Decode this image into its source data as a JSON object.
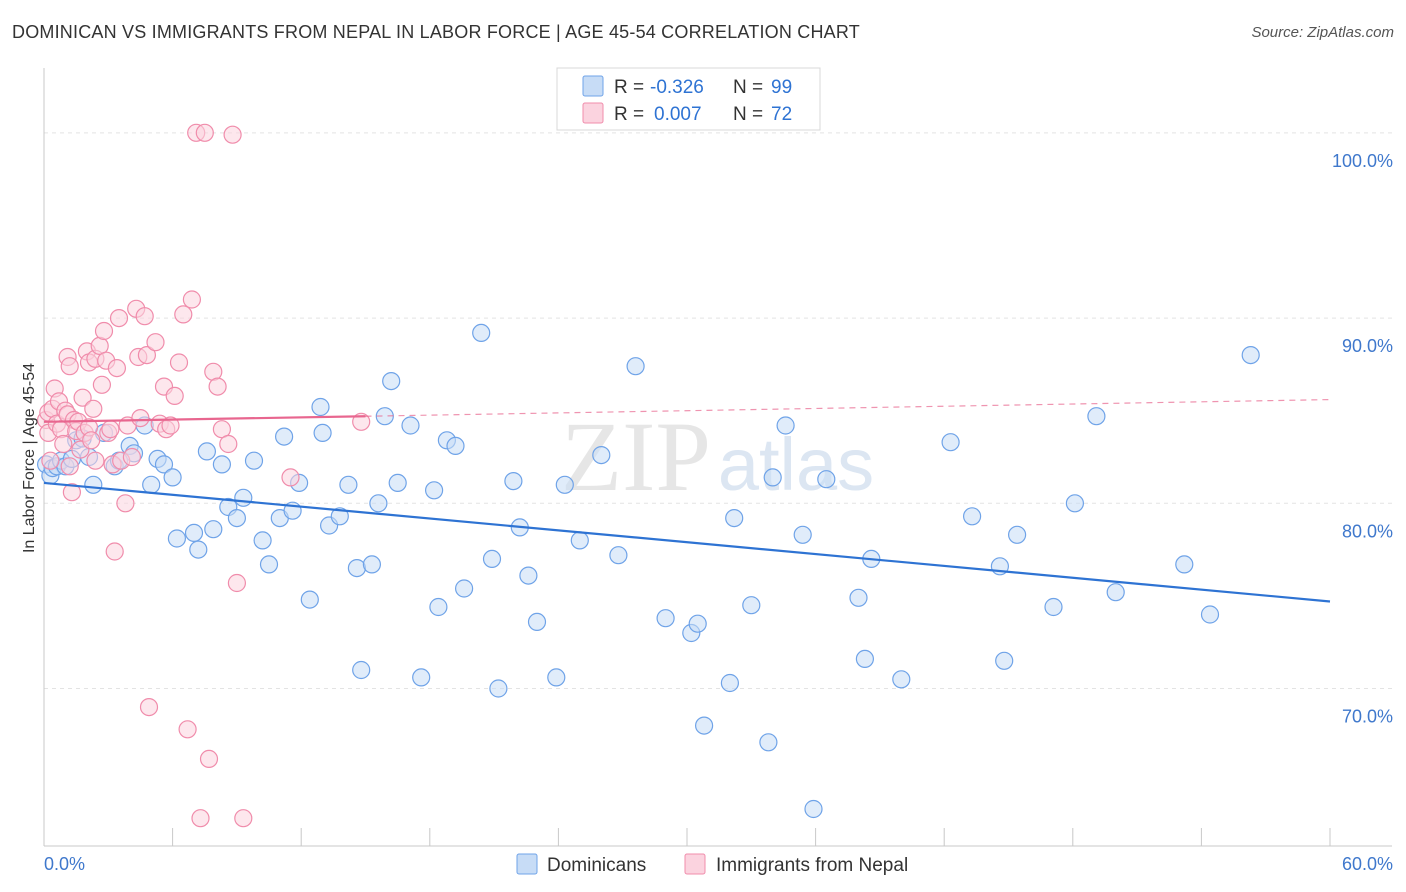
{
  "header": {
    "title": "DOMINICAN VS IMMIGRANTS FROM NEPAL IN LABOR FORCE | AGE 45-54 CORRELATION CHART",
    "source": "Source: ZipAtlas.com"
  },
  "watermark": {
    "zip": "ZIP",
    "atlas": "atlas"
  },
  "legend_stats": [
    {
      "r_label": "R =",
      "r_value": "-0.326",
      "n_label": "N =",
      "n_value": "99",
      "color": "#6fa3e8"
    },
    {
      "r_label": "R =",
      "r_value": "0.007",
      "n_label": "N =",
      "n_value": "72",
      "color": "#f08cab"
    }
  ],
  "chart_data": {
    "type": "scatter",
    "title": "DOMINICAN VS IMMIGRANTS FROM NEPAL IN LABOR FORCE | AGE 45-54 CORRELATION CHART",
    "ylabel": "In Labor Force | Age 45-54",
    "xlabel": "",
    "xlim": [
      0,
      60
    ],
    "ylim": [
      61.5,
      103.5
    ],
    "x_ticks": [
      0,
      6,
      12,
      18,
      24,
      30,
      36,
      42,
      48,
      54,
      60
    ],
    "x_tick_labels": {
      "left": "0.0%",
      "right": "60.0%"
    },
    "y_ticks": [
      {
        "value": 100,
        "label": "100.0%"
      },
      {
        "value": 90,
        "label": "90.0%"
      },
      {
        "value": 80,
        "label": "80.0%"
      },
      {
        "value": 70,
        "label": "70.0%"
      }
    ],
    "grid": true,
    "legend_position": "bottom-center",
    "colors": {
      "blue_fill": "#c7dcf6",
      "blue_stroke": "#6fa3e8",
      "blue_line": "#2e73d3",
      "pink_fill": "#fbd3df",
      "pink_stroke": "#f08cab",
      "pink_line": "#e8668f",
      "tick_label": "#3f78cc"
    },
    "series": [
      {
        "name": "Dominicans",
        "color": "#6fa3e8",
        "trend": {
          "x": [
            0,
            60
          ],
          "y": [
            81.1,
            74.7
          ],
          "style": "solid"
        },
        "points": [
          [
            0.1,
            82.1
          ],
          [
            0.3,
            81.5
          ],
          [
            0.4,
            81.9
          ],
          [
            0.6,
            82.0
          ],
          [
            0.8,
            82.3
          ],
          [
            1.0,
            82.0
          ],
          [
            1.3,
            82.4
          ],
          [
            1.5,
            83.4
          ],
          [
            1.8,
            83.5
          ],
          [
            2.1,
            82.5
          ],
          [
            2.3,
            81.0
          ],
          [
            2.8,
            83.8
          ],
          [
            3.3,
            82.0
          ],
          [
            3.5,
            82.3
          ],
          [
            4.0,
            83.1
          ],
          [
            4.2,
            82.7
          ],
          [
            4.7,
            84.2
          ],
          [
            5.0,
            81.0
          ],
          [
            5.3,
            82.4
          ],
          [
            5.6,
            82.1
          ],
          [
            6.0,
            81.4
          ],
          [
            6.2,
            78.1
          ],
          [
            7.0,
            78.4
          ],
          [
            7.2,
            77.5
          ],
          [
            7.6,
            82.8
          ],
          [
            7.9,
            78.6
          ],
          [
            8.3,
            82.1
          ],
          [
            8.6,
            79.8
          ],
          [
            9.0,
            79.2
          ],
          [
            9.3,
            80.3
          ],
          [
            9.8,
            82.3
          ],
          [
            10.2,
            78.0
          ],
          [
            10.5,
            76.7
          ],
          [
            11.0,
            79.2
          ],
          [
            11.2,
            83.6
          ],
          [
            11.6,
            79.6
          ],
          [
            11.9,
            81.1
          ],
          [
            12.4,
            74.8
          ],
          [
            12.9,
            85.2
          ],
          [
            13.0,
            83.8
          ],
          [
            13.3,
            78.8
          ],
          [
            13.8,
            79.3
          ],
          [
            14.2,
            81.0
          ],
          [
            14.6,
            76.5
          ],
          [
            14.8,
            71.0
          ],
          [
            15.3,
            76.7
          ],
          [
            15.6,
            80.0
          ],
          [
            15.9,
            84.7
          ],
          [
            16.2,
            86.6
          ],
          [
            16.5,
            81.1
          ],
          [
            17.1,
            84.2
          ],
          [
            17.6,
            70.6
          ],
          [
            18.2,
            80.7
          ],
          [
            18.4,
            74.4
          ],
          [
            18.8,
            83.4
          ],
          [
            19.2,
            83.1
          ],
          [
            19.6,
            75.4
          ],
          [
            20.4,
            89.2
          ],
          [
            20.9,
            77.0
          ],
          [
            21.2,
            70.0
          ],
          [
            21.9,
            81.2
          ],
          [
            22.2,
            78.7
          ],
          [
            22.6,
            76.1
          ],
          [
            23.0,
            73.6
          ],
          [
            23.9,
            70.6
          ],
          [
            24.3,
            81.0
          ],
          [
            25.0,
            78.0
          ],
          [
            26.0,
            82.6
          ],
          [
            26.8,
            77.2
          ],
          [
            27.6,
            87.4
          ],
          [
            29.0,
            73.8
          ],
          [
            30.2,
            73.0
          ],
          [
            30.5,
            73.5
          ],
          [
            30.8,
            68.0
          ],
          [
            32.0,
            70.3
          ],
          [
            32.2,
            79.2
          ],
          [
            33.0,
            74.5
          ],
          [
            33.8,
            67.1
          ],
          [
            34.0,
            81.4
          ],
          [
            34.6,
            84.2
          ],
          [
            35.4,
            78.3
          ],
          [
            35.9,
            63.5
          ],
          [
            36.5,
            81.3
          ],
          [
            38.0,
            74.9
          ],
          [
            38.3,
            71.6
          ],
          [
            38.6,
            77.0
          ],
          [
            40.0,
            70.5
          ],
          [
            42.3,
            83.3
          ],
          [
            43.3,
            79.3
          ],
          [
            44.6,
            76.6
          ],
          [
            44.8,
            71.5
          ],
          [
            45.4,
            78.3
          ],
          [
            47.1,
            74.4
          ],
          [
            48.1,
            80.0
          ],
          [
            49.1,
            84.7
          ],
          [
            50.0,
            75.2
          ],
          [
            53.2,
            76.7
          ],
          [
            54.4,
            74.0
          ],
          [
            56.3,
            88.0
          ]
        ]
      },
      {
        "name": "Immigrants from Nepal",
        "color": "#f08cab",
        "trend": {
          "x": [
            0,
            15
          ],
          "y": [
            84.4,
            84.7
          ],
          "style": "solid",
          "extension": {
            "x": [
              15,
              60
            ],
            "y": [
              84.7,
              85.6
            ],
            "style": "dashed"
          }
        },
        "points": [
          [
            0.1,
            84.5
          ],
          [
            0.2,
            83.8
          ],
          [
            0.2,
            84.9
          ],
          [
            0.3,
            82.3
          ],
          [
            0.4,
            85.1
          ],
          [
            0.5,
            86.2
          ],
          [
            0.6,
            84.3
          ],
          [
            0.7,
            85.5
          ],
          [
            0.8,
            84.0
          ],
          [
            0.9,
            83.2
          ],
          [
            1.0,
            85.0
          ],
          [
            1.1,
            87.9
          ],
          [
            1.1,
            84.8
          ],
          [
            1.2,
            82.0
          ],
          [
            1.2,
            87.4
          ],
          [
            1.3,
            80.6
          ],
          [
            1.4,
            84.5
          ],
          [
            1.5,
            83.9
          ],
          [
            1.6,
            84.4
          ],
          [
            1.7,
            82.9
          ],
          [
            1.8,
            85.7
          ],
          [
            1.9,
            83.8
          ],
          [
            2.0,
            88.2
          ],
          [
            2.1,
            87.6
          ],
          [
            2.1,
            84.1
          ],
          [
            2.2,
            83.4
          ],
          [
            2.3,
            85.1
          ],
          [
            2.4,
            87.8
          ],
          [
            2.4,
            82.3
          ],
          [
            2.6,
            88.5
          ],
          [
            2.7,
            86.4
          ],
          [
            2.8,
            89.3
          ],
          [
            2.9,
            87.7
          ],
          [
            3.0,
            83.8
          ],
          [
            3.1,
            84.0
          ],
          [
            3.2,
            82.1
          ],
          [
            3.3,
            77.4
          ],
          [
            3.4,
            87.3
          ],
          [
            3.5,
            90.0
          ],
          [
            3.6,
            82.3
          ],
          [
            3.8,
            80.0
          ],
          [
            3.9,
            84.2
          ],
          [
            4.1,
            82.5
          ],
          [
            4.3,
            90.5
          ],
          [
            4.4,
            87.9
          ],
          [
            4.5,
            84.6
          ],
          [
            4.7,
            90.1
          ],
          [
            4.8,
            88.0
          ],
          [
            4.9,
            69.0
          ],
          [
            5.2,
            88.7
          ],
          [
            5.4,
            84.3
          ],
          [
            5.6,
            86.3
          ],
          [
            5.7,
            84.0
          ],
          [
            5.9,
            84.2
          ],
          [
            6.1,
            85.8
          ],
          [
            6.3,
            87.6
          ],
          [
            6.5,
            90.2
          ],
          [
            6.7,
            67.8
          ],
          [
            6.9,
            91.0
          ],
          [
            7.1,
            100.0
          ],
          [
            7.3,
            63.0
          ],
          [
            7.5,
            100.0
          ],
          [
            7.7,
            66.2
          ],
          [
            7.9,
            87.1
          ],
          [
            8.1,
            86.3
          ],
          [
            8.3,
            84.0
          ],
          [
            8.6,
            83.2
          ],
          [
            8.8,
            99.9
          ],
          [
            9.0,
            75.7
          ],
          [
            9.3,
            63.0
          ],
          [
            11.5,
            81.4
          ],
          [
            14.8,
            84.4
          ]
        ]
      }
    ]
  },
  "bottom_legend": [
    {
      "label": "Dominicans",
      "color": "#6fa3e8"
    },
    {
      "label": "Immigrants from Nepal",
      "color": "#f08cab"
    }
  ]
}
